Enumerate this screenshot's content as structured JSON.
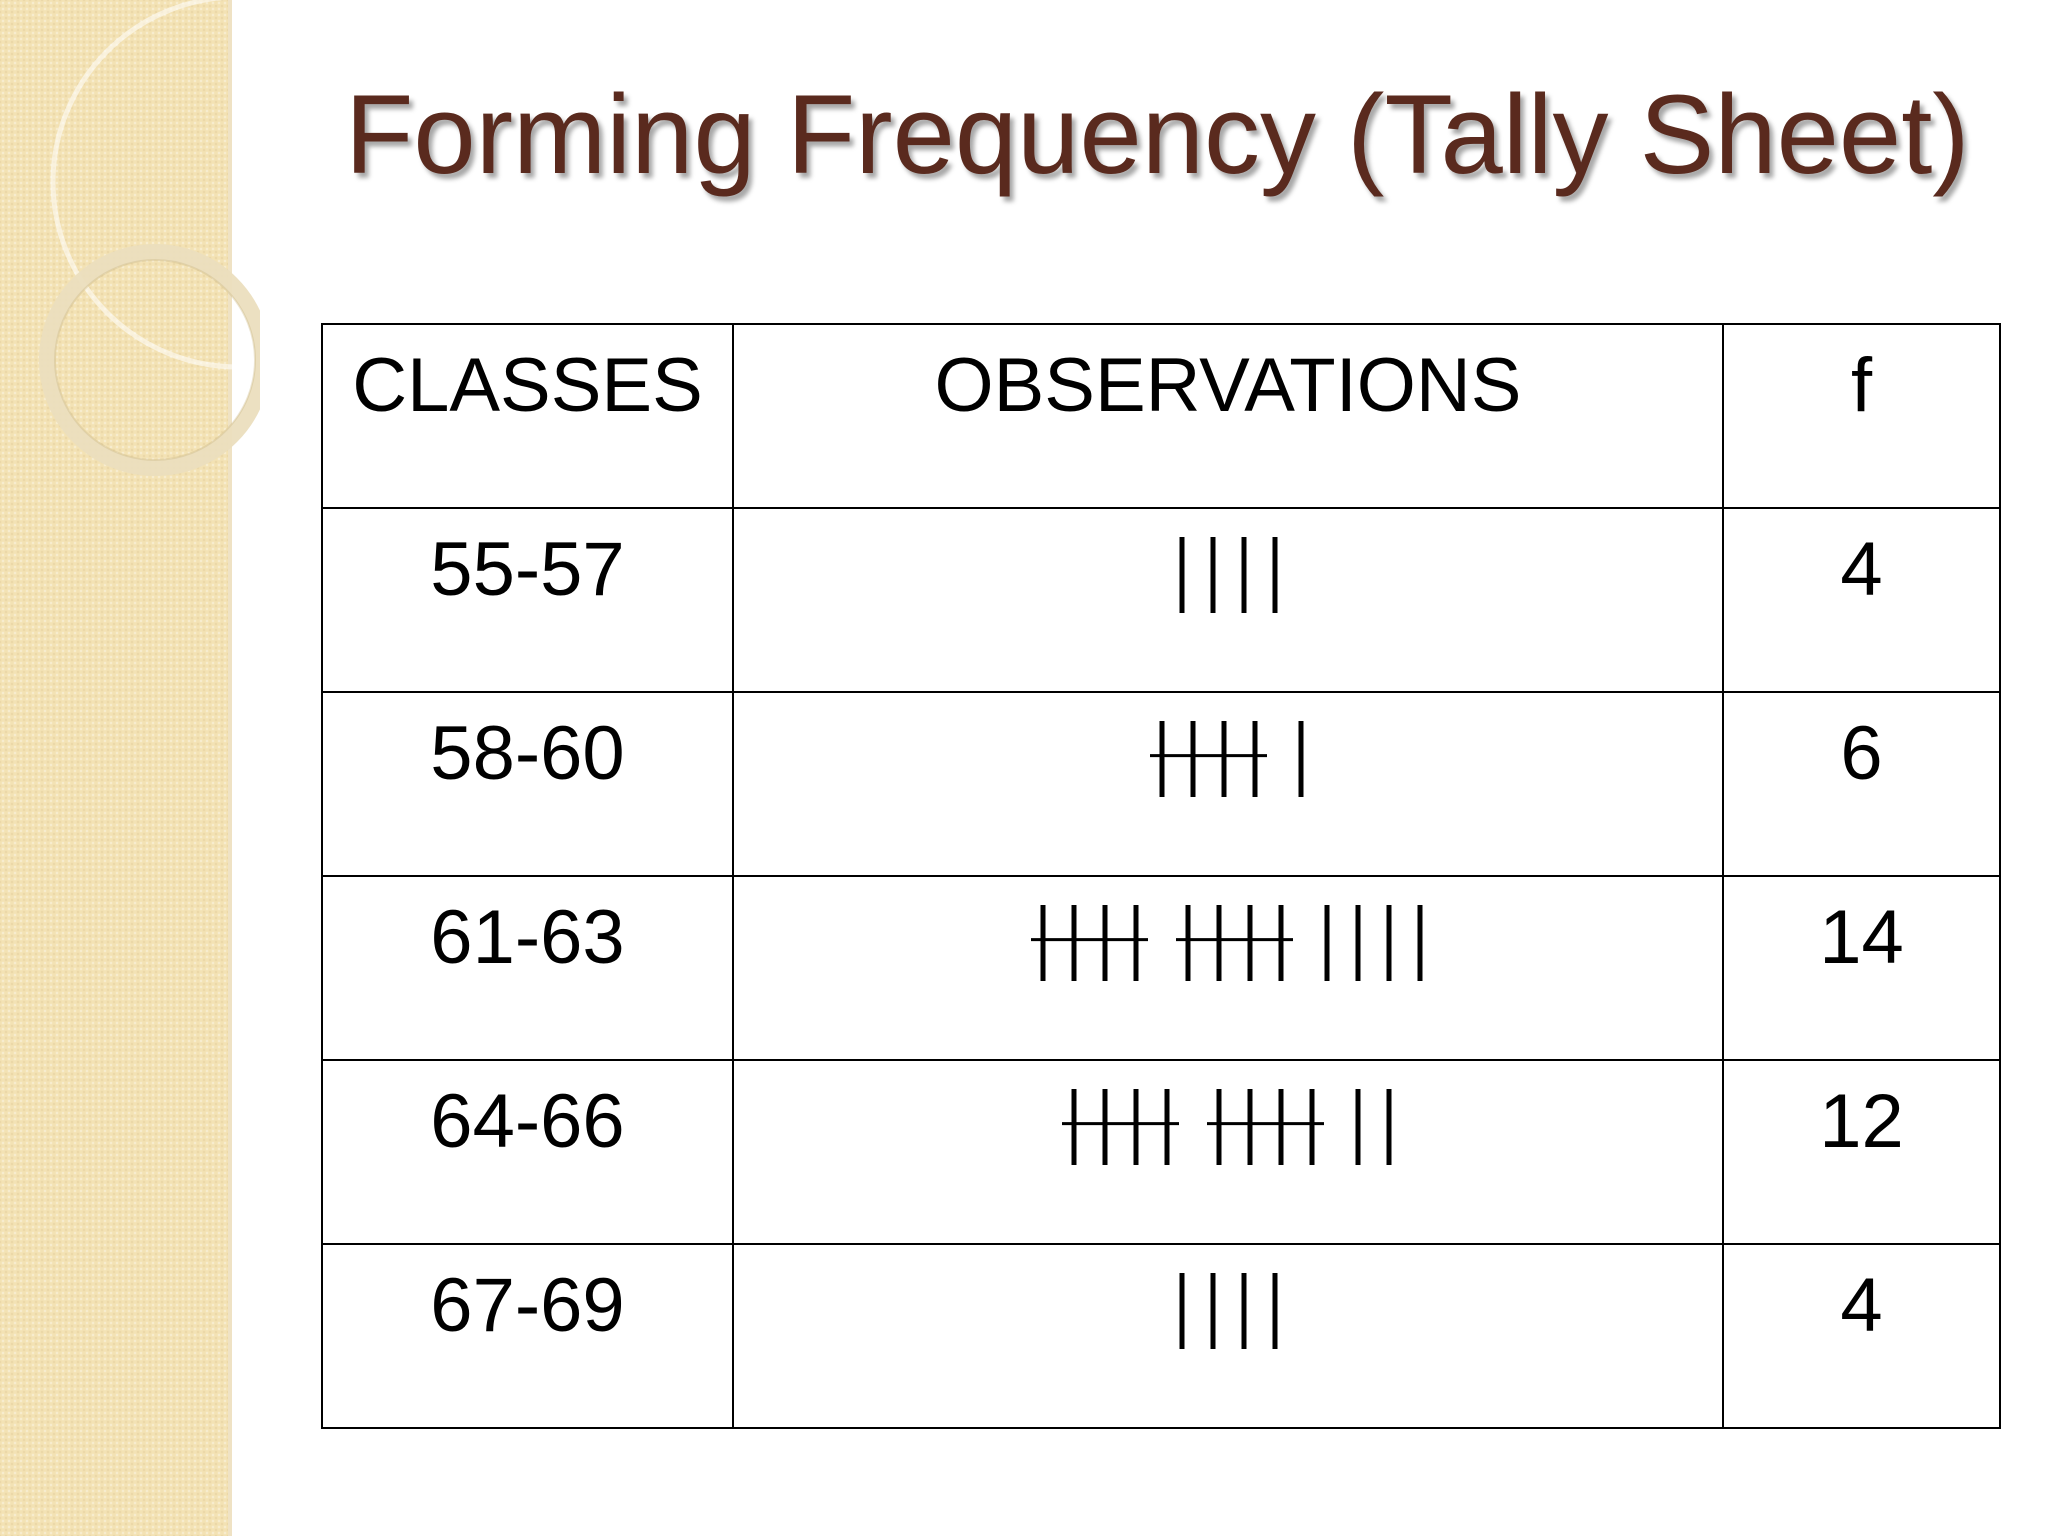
{
  "slide": {
    "title": "Forming Frequency (Tally Sheet)",
    "title_color": "#5a2a1e",
    "side_band_color": "#f3e2b4"
  },
  "table": {
    "headers": [
      "CLASSES",
      "OBSERVATIONS",
      "f"
    ],
    "rows": [
      {
        "class": "55-57",
        "tally": [
          4
        ],
        "f": "4"
      },
      {
        "class": "58-60",
        "tally": [
          5,
          1
        ],
        "f": "6"
      },
      {
        "class": "61-63",
        "tally": [
          5,
          5,
          4
        ],
        "f": "14"
      },
      {
        "class": "64-66",
        "tally": [
          5,
          5,
          2
        ],
        "f": "12"
      },
      {
        "class": "67-69",
        "tally": [
          4
        ],
        "f": "4"
      }
    ]
  }
}
